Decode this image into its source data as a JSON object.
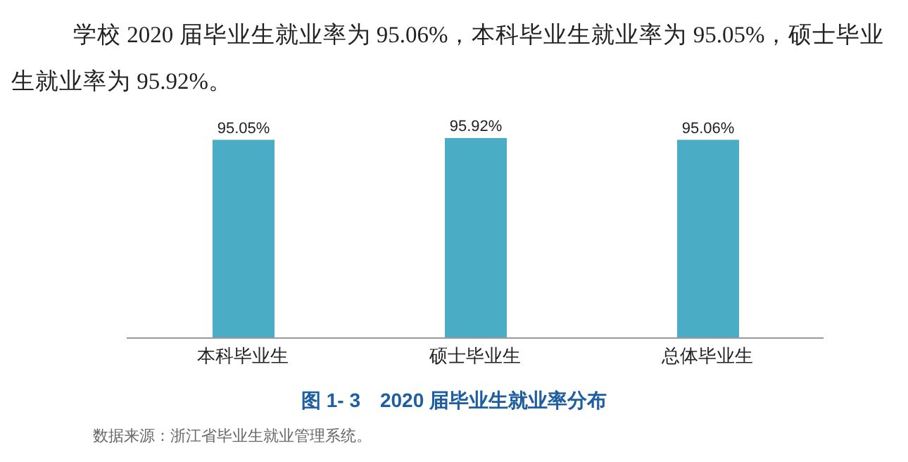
{
  "chart_data": {
    "type": "bar",
    "title": "图 1- 3　2020 届毕业生就业率分布",
    "subtitle": "学校 2020 届毕业生就业率为 95.06%，本科毕业生就业率为 95.05%，硕士毕业生就业率为 95.92%。",
    "categories": [
      "本科毕业生",
      "硕士毕业生",
      "总体毕业生"
    ],
    "values": [
      95.05,
      95.92,
      95.06
    ],
    "value_labels": [
      "95.05%",
      "95.92%",
      "95.06%"
    ],
    "color": "#4bacc6",
    "grid": false,
    "legend": false,
    "annotations": [
      "数据来源：浙江省毕业生就业管理系统。"
    ]
  }
}
